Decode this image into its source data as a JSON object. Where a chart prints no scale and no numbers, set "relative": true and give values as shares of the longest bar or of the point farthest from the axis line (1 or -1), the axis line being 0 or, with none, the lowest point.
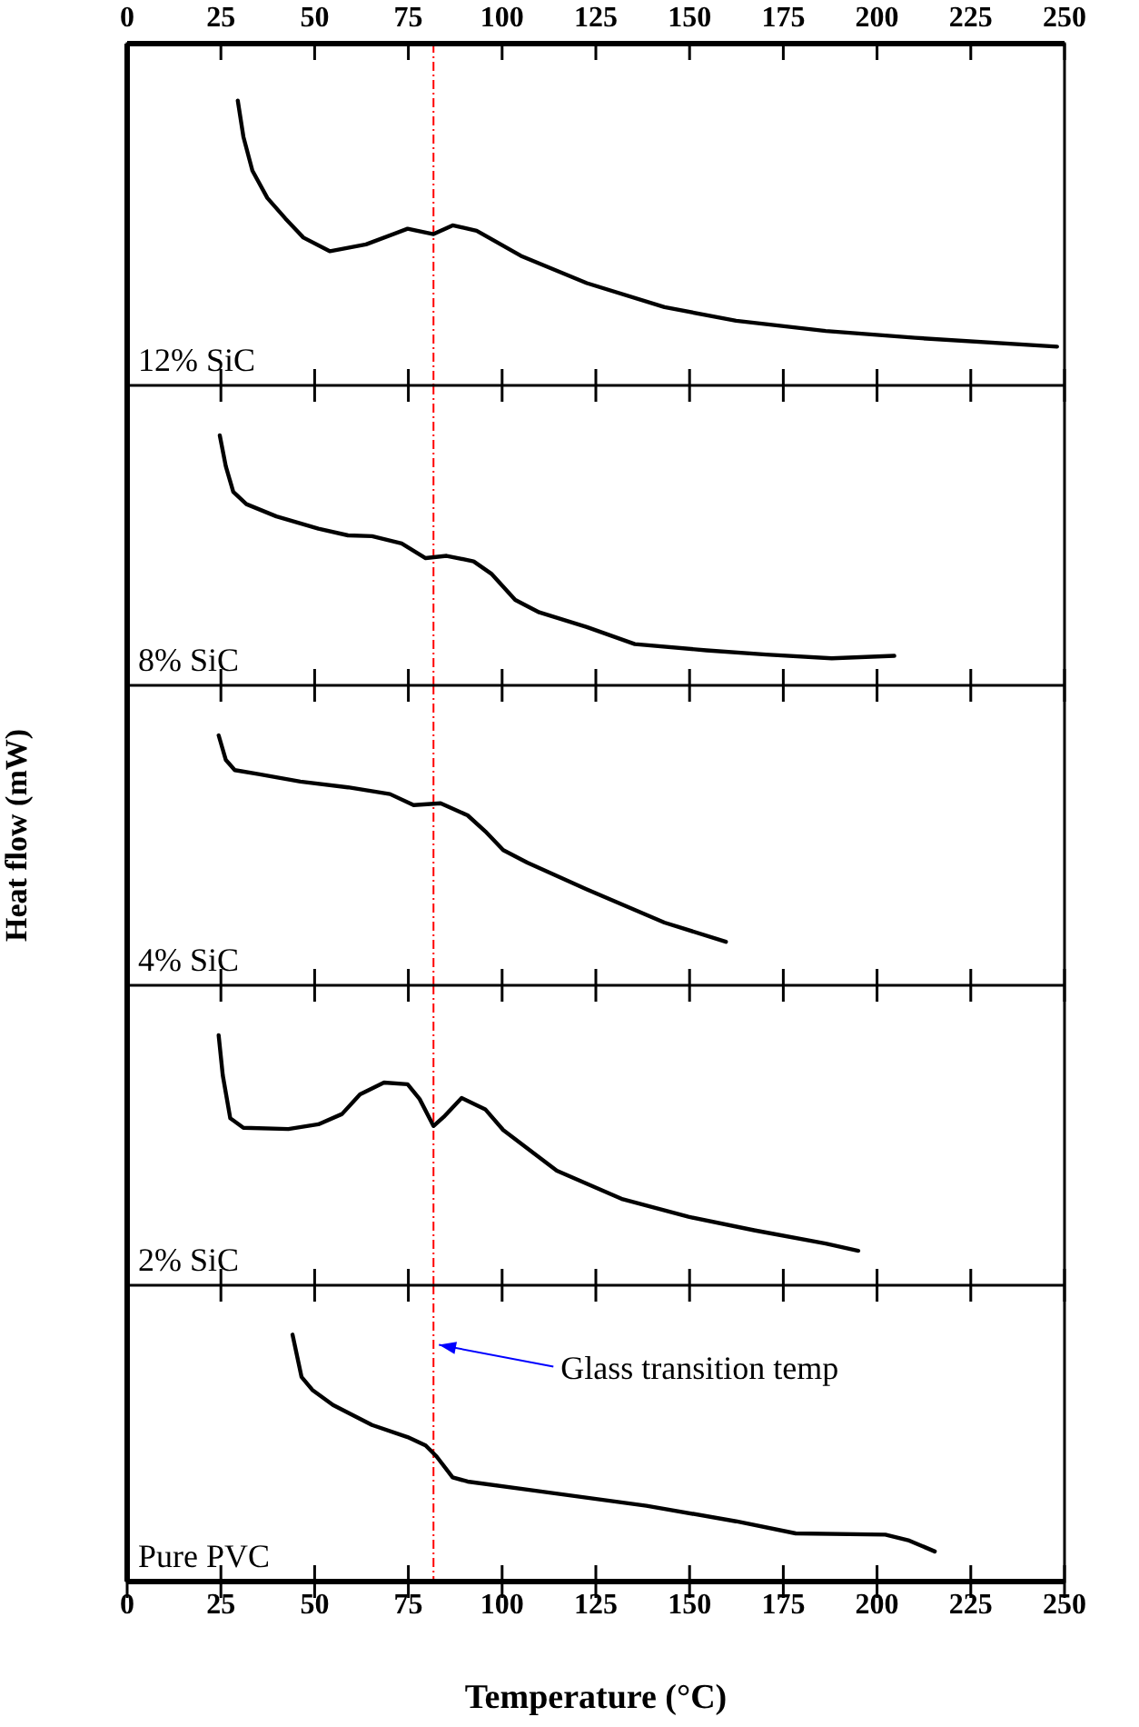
{
  "chart_data": [
    {
      "type": "line",
      "relative": true,
      "xlim": [
        0,
        250
      ],
      "xticks": [
        0,
        25,
        50,
        75,
        100,
        125,
        150,
        175,
        200,
        225,
        250
      ],
      "series": [
        {
          "name": "12% SiC",
          "color": "#000000",
          "x": [
            29.5,
            31,
            33.4,
            37.4,
            42.2,
            47,
            54.1,
            63.7,
            74.8,
            81.7,
            86.8,
            93.2,
            105,
            122.6,
            143.3,
            162.4,
            186.3,
            210.2,
            248
          ],
          "values": [
            1,
            0.873,
            0.754,
            0.658,
            0.586,
            0.519,
            0.471,
            0.495,
            0.55,
            0.531,
            0.562,
            0.543,
            0.455,
            0.359,
            0.275,
            0.227,
            0.191,
            0.167,
            0.136
          ]
        }
      ],
      "ref_lines": [
        {
          "axis": "x",
          "value": 81.7,
          "color": "#ff0000",
          "line_style": "dashed"
        }
      ]
    },
    {
      "type": "line",
      "relative": true,
      "tick_labels": false,
      "xlim": [
        0,
        250
      ],
      "xticks": [
        0,
        25,
        50,
        75,
        100,
        125,
        150,
        175,
        200,
        225,
        250
      ],
      "series": [
        {
          "name": "8% SiC",
          "color": "#000000",
          "x": [
            24.7,
            26.3,
            28.3,
            31.8,
            39.8,
            51,
            58.9,
            65.3,
            73.2,
            79.6,
            85.2,
            92.4,
            97.1,
            103.5,
            109.9,
            122.6,
            135.4,
            154.5,
            170.4,
            187.9,
            204.6
          ],
          "values": [
            1,
            0.877,
            0.774,
            0.725,
            0.676,
            0.627,
            0.6,
            0.597,
            0.568,
            0.509,
            0.518,
            0.496,
            0.447,
            0.342,
            0.292,
            0.233,
            0.165,
            0.14,
            0.123,
            0.108,
            0.118
          ]
        }
      ],
      "ref_lines": [
        {
          "axis": "x",
          "value": 81.7,
          "color": "#ff0000",
          "line_style": "dashed"
        }
      ]
    },
    {
      "type": "line",
      "relative": true,
      "tick_labels": false,
      "ylabel": "Heat flow (mW)",
      "xlim": [
        0,
        250
      ],
      "xticks": [
        0,
        25,
        50,
        75,
        100,
        125,
        150,
        175,
        200,
        225,
        250
      ],
      "series": [
        {
          "name": "4% SiC",
          "color": "#000000",
          "x": [
            24.4,
            26.3,
            28.7,
            35,
            46.2,
            58.9,
            70.1,
            76.4,
            83.6,
            90.8,
            95.5,
            100.3,
            106.7,
            122.6,
            143.3,
            159.7
          ],
          "values": [
            1,
            0.902,
            0.861,
            0.845,
            0.815,
            0.792,
            0.765,
            0.721,
            0.728,
            0.68,
            0.616,
            0.541,
            0.491,
            0.384,
            0.251,
            0.174
          ]
        }
      ],
      "ref_lines": [
        {
          "axis": "x",
          "value": 81.7,
          "color": "#ff0000",
          "line_style": "dashed"
        }
      ]
    },
    {
      "type": "line",
      "relative": true,
      "tick_labels": false,
      "xlim": [
        0,
        250
      ],
      "xticks": [
        0,
        25,
        50,
        75,
        100,
        125,
        150,
        175,
        200,
        225,
        250
      ],
      "series": [
        {
          "name": "2% SiC",
          "color": "#000000",
          "x": [
            24.4,
            25.5,
            27.5,
            31,
            43,
            51,
            57.3,
            62.1,
            68.5,
            74.8,
            78,
            81.7,
            84.4,
            89.2,
            95.5,
            100.3,
            114.6,
            132.2,
            149.7,
            167.2,
            186.3,
            195
          ],
          "values": [
            1,
            0.84,
            0.668,
            0.63,
            0.625,
            0.644,
            0.685,
            0.764,
            0.811,
            0.804,
            0.745,
            0.637,
            0.673,
            0.749,
            0.704,
            0.621,
            0.458,
            0.344,
            0.274,
            0.22,
            0.167,
            0.138
          ]
        }
      ],
      "ref_lines": [
        {
          "axis": "x",
          "value": 81.7,
          "color": "#ff0000",
          "line_style": "dashed"
        }
      ]
    },
    {
      "type": "line",
      "relative": true,
      "xlabel": "Temperature (°C)",
      "xlim": [
        0,
        250
      ],
      "xticks": [
        0,
        25,
        50,
        75,
        100,
        125,
        150,
        175,
        200,
        225,
        250
      ],
      "series": [
        {
          "name": "Pure PVC",
          "color": "#000000",
          "x": [
            44.1,
            46.5,
            49.4,
            54.9,
            65.3,
            74.8,
            79.6,
            82.5,
            86.8,
            90.8,
            109.9,
            138.5,
            162.4,
            178.3,
            202.2,
            208.6,
            215.4
          ],
          "values": [
            1,
            0.829,
            0.776,
            0.715,
            0.634,
            0.585,
            0.551,
            0.507,
            0.422,
            0.405,
            0.366,
            0.307,
            0.244,
            0.195,
            0.19,
            0.166,
            0.122
          ]
        }
      ],
      "ref_lines": [
        {
          "axis": "x",
          "value": 81.7,
          "color": "#ff0000",
          "line_style": "dashed"
        }
      ],
      "annotations": [
        {
          "text": "Glass transition temp",
          "x": 81.7,
          "y": 0.959
        }
      ]
    }
  ]
}
